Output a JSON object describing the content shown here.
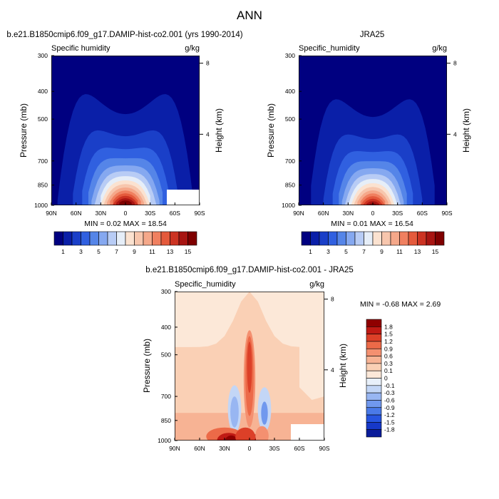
{
  "figure": {
    "title": "ANN"
  },
  "colors": {
    "abs_levels": [
      "#000080",
      "#0a1fa8",
      "#1a3fc8",
      "#3060e0",
      "#5585e8",
      "#85a8f0",
      "#b8ccf5",
      "#e6eef8",
      "#fbe2d0",
      "#f7c6ad",
      "#f5a88a",
      "#f08060",
      "#e45a3c",
      "#cc3322",
      "#a81512",
      "#7f0000"
    ],
    "diff_levels": [
      "#00007f",
      "#0a1c9a",
      "#1638c8",
      "#2755e0",
      "#4a7ae8",
      "#7098ee",
      "#98b6f2",
      "#c3d6f6",
      "#e8f0fa",
      "#fce8d8",
      "#fad0b5",
      "#f7b394",
      "#f49070",
      "#ec6a48",
      "#dc4028",
      "#c01a14",
      "#8f0000"
    ]
  },
  "chart_data": [
    {
      "type": "heatmap",
      "panel": "model",
      "title": "b.e21.B1850cmip6.f09_g17.DAMIP-hist-co2.001 (yrs 1990-2014)",
      "variable_label": "Specific humidity",
      "units": "g/kg",
      "ylabel": "Pressure (mb)",
      "ylabel_right": "Height (km)",
      "x_ticks": [
        "90N",
        "60N",
        "30N",
        "0",
        "30S",
        "60S",
        "90S"
      ],
      "x_tick_values": [
        90,
        60,
        30,
        0,
        -30,
        -60,
        -90
      ],
      "xlim": [
        90,
        -90
      ],
      "y_ticks": [
        300,
        400,
        500,
        700,
        850,
        1000
      ],
      "ylim": [
        1000,
        300
      ],
      "y_scale": "log",
      "height_ticks_km": [
        8,
        4
      ],
      "stats": "MIN =  0.02  MAX = 18.54",
      "min": 0.02,
      "max": 18.54,
      "colorbar_ticks": [
        "1",
        "3",
        "5",
        "7",
        "9",
        "11",
        "13",
        "15"
      ],
      "colorbar_levels": 16,
      "surface_max": 17.5,
      "width": 26,
      "top_scale": 0.035,
      "legend": "horizontal-bottom"
    },
    {
      "type": "heatmap",
      "panel": "obs",
      "title": "JRA25",
      "variable_label": "Specific_humidity",
      "units": "g/kg",
      "ylabel": "Pressure (mb)",
      "ylabel_right": "Height (km)",
      "x_ticks": [
        "90N",
        "60N",
        "30N",
        "0",
        "30S",
        "60S",
        "90S"
      ],
      "x_tick_values": [
        90,
        60,
        30,
        0,
        -30,
        -60,
        -90
      ],
      "xlim": [
        90,
        -90
      ],
      "y_ticks": [
        300,
        400,
        500,
        700,
        850,
        1000
      ],
      "ylim": [
        1000,
        300
      ],
      "y_scale": "log",
      "height_ticks_km": [
        8,
        4
      ],
      "stats": "MIN =  0.01  MAX = 16.54",
      "min": 0.01,
      "max": 16.54,
      "colorbar_ticks": [
        "1",
        "3",
        "5",
        "7",
        "9",
        "11",
        "13",
        "15"
      ],
      "colorbar_levels": 16,
      "surface_max": 16.0,
      "width": 25,
      "top_scale": 0.03,
      "legend": "horizontal-bottom"
    },
    {
      "type": "heatmap",
      "panel": "difference",
      "title": "b.e21.B1850cmip6.f09_g17.DAMIP-hist-co2.001 - JRA25",
      "variable_label": "Specific_humidity",
      "units": "g/kg",
      "ylabel": "Pressure (mb)",
      "ylabel_right": "Height (km)",
      "x_ticks": [
        "90N",
        "60N",
        "30N",
        "0",
        "30S",
        "60S",
        "90S"
      ],
      "x_tick_values": [
        90,
        60,
        30,
        0,
        -30,
        -60,
        -90
      ],
      "xlim": [
        90,
        -90
      ],
      "y_ticks": [
        300,
        400,
        500,
        700,
        850,
        1000
      ],
      "ylim": [
        1000,
        300
      ],
      "y_scale": "log",
      "height_ticks_km": [
        8,
        4
      ],
      "stats": "MIN = -0.68  MAX =  2.69",
      "min": -0.68,
      "max": 2.69,
      "colorbar_ticks": [
        "1.8",
        "1.5",
        "1.2",
        "0.9",
        "0.6",
        "0.3",
        "0.1",
        "0",
        "-0.1",
        "-0.3",
        "-0.6",
        "-0.9",
        "-1.2",
        "-1.5",
        "-1.8"
      ],
      "colorbar_levels": 16,
      "legend": "vertical-right"
    }
  ]
}
